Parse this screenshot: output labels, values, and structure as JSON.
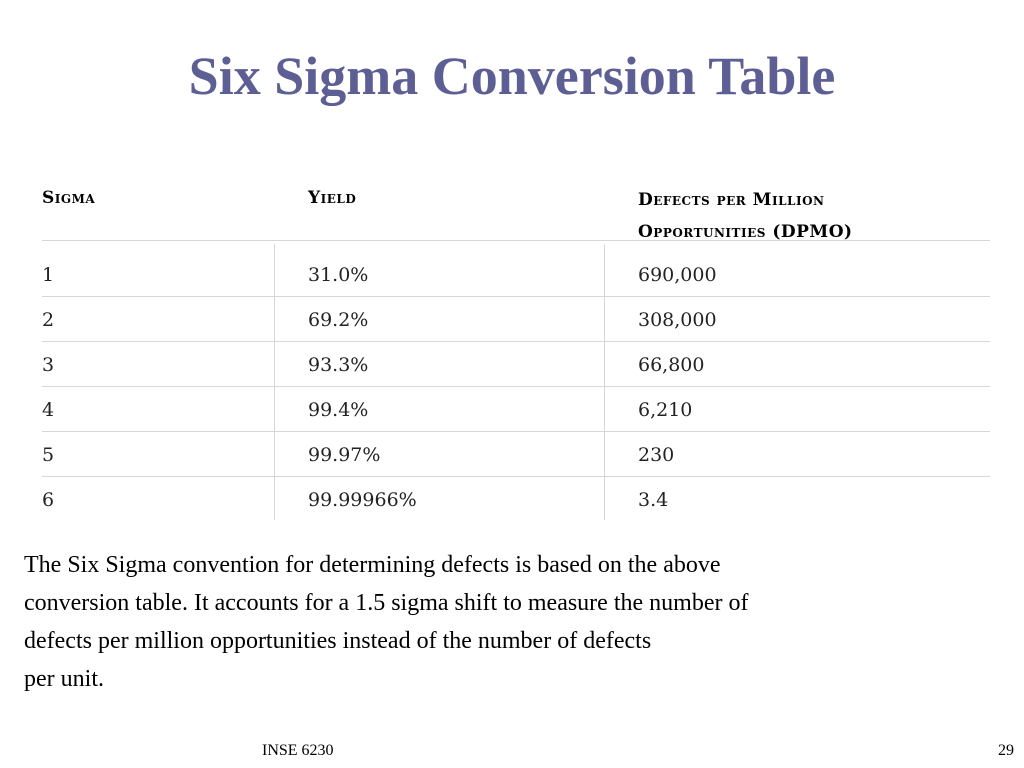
{
  "title": "Six Sigma Conversion Table",
  "table": {
    "headers": {
      "sigma": "Sigma",
      "yield": "Yield",
      "dpmo_line1": "Defects per Million",
      "dpmo_line2": "Opportunities (DPMO)"
    },
    "rows": [
      {
        "sigma": "1",
        "yield": "31.0%",
        "dpmo": "690,000"
      },
      {
        "sigma": "2",
        "yield": "69.2%",
        "dpmo": "308,000"
      },
      {
        "sigma": "3",
        "yield": "93.3%",
        "dpmo": "66,800"
      },
      {
        "sigma": "4",
        "yield": "99.4%",
        "dpmo": "6,210"
      },
      {
        "sigma": "5",
        "yield": "99.97%",
        "dpmo": "230"
      },
      {
        "sigma": "6",
        "yield": "99.99966%",
        "dpmo": "3.4"
      }
    ]
  },
  "body_lines": [
    "The Six Sigma convention for determining defects is based on the above",
    "conversion table. It accounts for a 1.5 sigma shift to measure the number of",
    "defects per million opportunities instead of the number of defects",
    "per unit."
  ],
  "footer": {
    "course": "INSE 6230",
    "page_number": "29"
  },
  "colors": {
    "title": "#5d5f94",
    "rule": "#d6d6d6"
  }
}
